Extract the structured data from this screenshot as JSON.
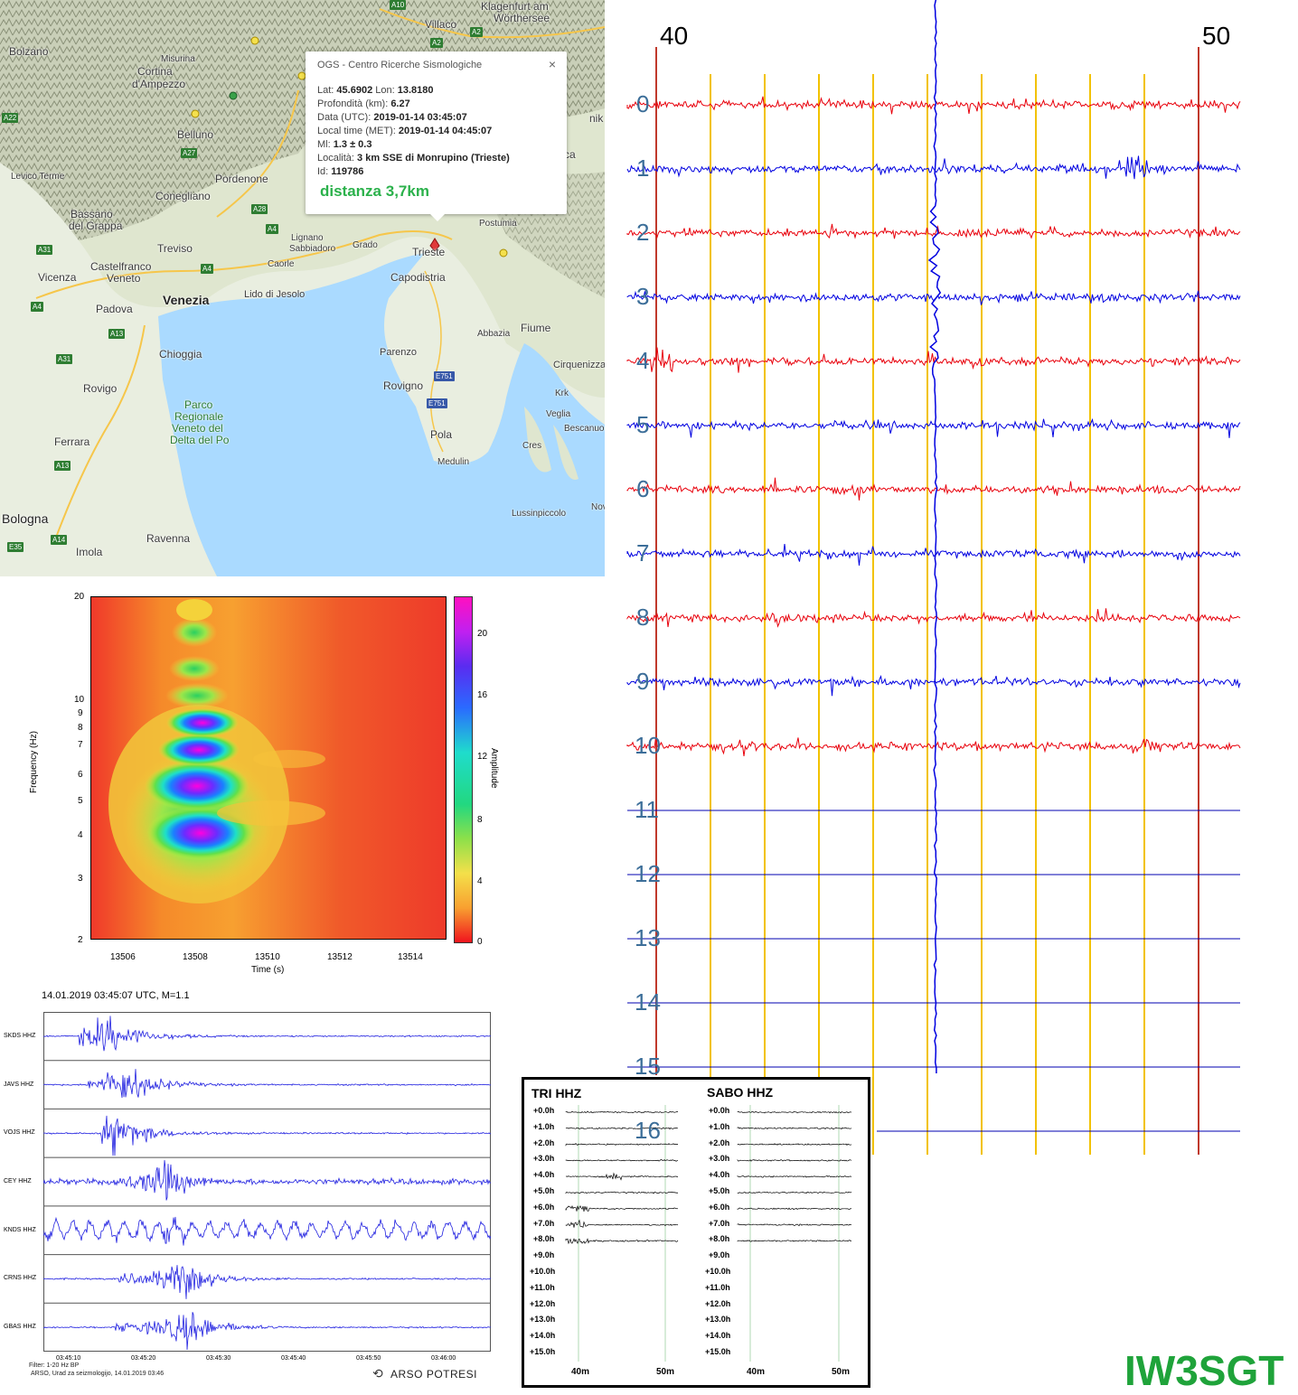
{
  "map": {
    "popup": {
      "title": "OGS - Centro Ricerche Sismologiche",
      "close": "×",
      "lat_label": "Lat:",
      "lat_value": "45.6902",
      "lon_label": "Lon:",
      "lon_value": "13.8180",
      "depth_label": "Profondità (km):",
      "depth_value": "6.27",
      "date_label": "Data (UTC):",
      "date_value": "2019-01-14 03:45:07",
      "local_label": "Local time (MET):",
      "local_value": "2019-01-14 04:45:07",
      "ml_label": "Ml:",
      "ml_value": "1.3 ± 0.3",
      "loc_label": "Località:",
      "loc_value": "3 km SSE di Monrupino (Trieste)",
      "id_label": "Id:",
      "id_value": "119786",
      "distance": "distanza 3,7km"
    },
    "places": [
      "Klagenfurt am",
      "Wörthersee",
      "Villaco",
      "Bolzano",
      "Cortina",
      "d'Ampezzo",
      "Misurina",
      "Belluno",
      "Pordenone",
      "Conegliano",
      "Bassano",
      "del Grappa",
      "Levico Terme",
      "Treviso",
      "Castelfranco",
      "Veneto",
      "Lignano",
      "Sabbiadoro",
      "Grado",
      "Caorle",
      "Trieste",
      "Capodistria",
      "Postumia",
      "Vicenza",
      "Padova",
      "Venezia",
      "Lido di Jesolo",
      "Chioggia",
      "Fiume",
      "Abbazia",
      "Parenzo",
      "Rovigno",
      "Rovigo",
      "Parco",
      "Regionale",
      "Veneto del",
      "Delta del Po",
      "Ferrara",
      "Pola",
      "Medulin",
      "Cres",
      "Krk",
      "Veglia",
      "Bescanuo",
      "Cirquenizza",
      "Lussinpiccolo",
      "Bologna",
      "Imola",
      "Ravenna",
      "Nov",
      "nik",
      "ca"
    ],
    "shields": [
      "A10",
      "A2",
      "A2",
      "A22",
      "A27",
      "A28",
      "A4",
      "A31",
      "A4",
      "A4",
      "A13",
      "A31",
      "A13",
      "A14",
      "E35",
      "E751",
      "E751"
    ]
  },
  "spectrogram": {
    "ylabel": "Frequency (Hz)",
    "xlabel": "Time (s)",
    "colorbar_label": "Amplitude",
    "yticks": [
      "20",
      "10",
      "9",
      "8",
      "7",
      "6",
      "5",
      "4",
      "3",
      "2"
    ],
    "xticks": [
      "13506",
      "13508",
      "13510",
      "13512",
      "13514"
    ],
    "cticks": [
      "20",
      "16",
      "12",
      "8",
      "4",
      "0"
    ]
  },
  "seismo": {
    "header": "14.01.2019  03:45:07 UTC, M=1.1",
    "channels": [
      "SKDS HHZ",
      "JAVS HHZ",
      "VOJS HHZ",
      "CEY HHZ",
      "KNDS HHZ",
      "CRNS HHZ",
      "GBAS HHZ"
    ],
    "times": [
      "03:45:10",
      "03:45:20",
      "03:45:30",
      "03:45:40",
      "03:45:50",
      "03:46:00"
    ],
    "filter": "Filter: 1-20 Hz BP",
    "credit": "ARSO, Urad za seizmologijo, 14.01.2019  03:46",
    "logo": "ARSO POTRESI"
  },
  "helicorder": {
    "top_left": "40",
    "top_right": "50",
    "rows": [
      "0",
      "1",
      "2",
      "3",
      "4",
      "5",
      "6",
      "7",
      "8",
      "9",
      "10",
      "11",
      "12",
      "13",
      "14",
      "15",
      "16"
    ],
    "colors": {
      "red": "#e8000b",
      "blue": "#0000e0",
      "yellow": "#f2c200",
      "marker": "#c0392b"
    }
  },
  "helicorder_small": {
    "left_title": "TRI HHZ",
    "right_title": "SABO HHZ",
    "offsets": [
      "+0.0h",
      "+1.0h",
      "+2.0h",
      "+3.0h",
      "+4.0h",
      "+5.0h",
      "+6.0h",
      "+7.0h",
      "+8.0h",
      "+9.0h",
      "+10.0h",
      "+11.0h",
      "+12.0h",
      "+13.0h",
      "+14.0h",
      "+15.0h"
    ],
    "xticks": [
      "40m",
      "50m"
    ]
  },
  "callsign": "IW3SGT"
}
